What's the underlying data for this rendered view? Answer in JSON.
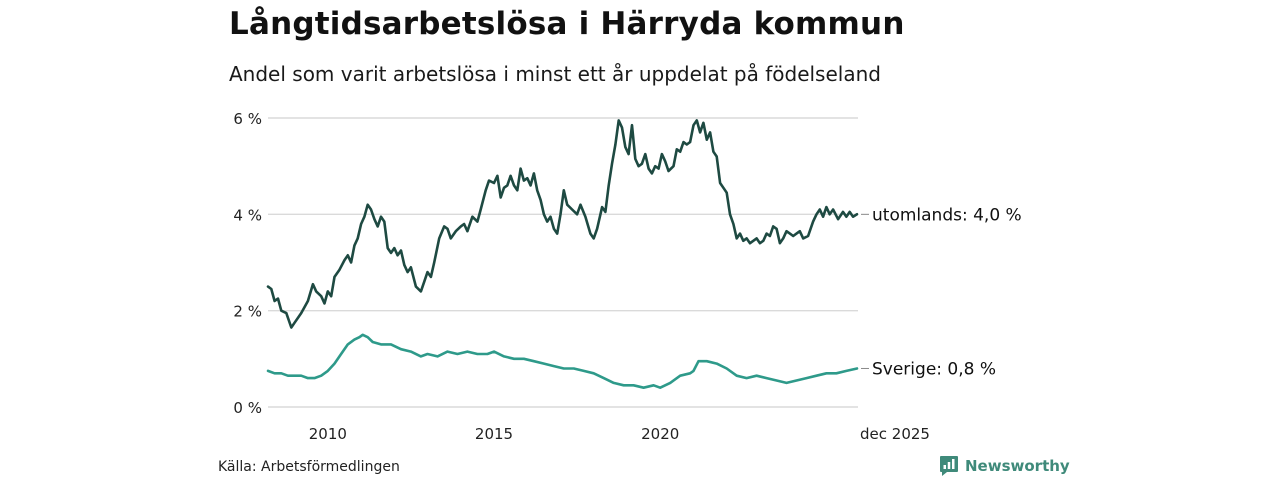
{
  "header": {
    "title": "Långtidsarbetslösa i Härryda kommun",
    "subtitle": "Andel som varit arbetslösa i minst ett år uppdelat på födelseland"
  },
  "footer": {
    "source": "Källa: Arbetsförmedlingen",
    "brand": "Newsworthy"
  },
  "chart_data": {
    "type": "line",
    "title": "Långtidsarbetslösa i Härryda kommun",
    "subtitle": "Andel som varit arbetslösa i minst ett år uppdelat på födelseland",
    "xlabel": "",
    "ylabel": "",
    "xlim": [
      2008.2,
      2025.95
    ],
    "ylim": [
      0,
      6
    ],
    "grid": "horizontal",
    "y_ticks": [
      0,
      2,
      4,
      6
    ],
    "y_tick_labels": [
      "0 %",
      "2 %",
      "4 %",
      "6 %"
    ],
    "x_ticks": [
      2010,
      2015,
      2020,
      2025.92
    ],
    "x_tick_labels": [
      "2010",
      "2015",
      "2020",
      "dec 2025"
    ],
    "series": [
      {
        "name": "utomlands",
        "end_label": "utomlands: 4,0 %",
        "color": "#1e4a42",
        "points": [
          [
            2008.2,
            2.5
          ],
          [
            2008.3,
            2.45
          ],
          [
            2008.4,
            2.2
          ],
          [
            2008.5,
            2.25
          ],
          [
            2008.6,
            2.0
          ],
          [
            2008.75,
            1.95
          ],
          [
            2008.9,
            1.65
          ],
          [
            2009.0,
            1.75
          ],
          [
            2009.2,
            1.95
          ],
          [
            2009.4,
            2.2
          ],
          [
            2009.55,
            2.55
          ],
          [
            2009.65,
            2.4
          ],
          [
            2009.8,
            2.3
          ],
          [
            2009.9,
            2.15
          ],
          [
            2010.0,
            2.4
          ],
          [
            2010.1,
            2.3
          ],
          [
            2010.2,
            2.7
          ],
          [
            2010.35,
            2.85
          ],
          [
            2010.5,
            3.05
          ],
          [
            2010.6,
            3.15
          ],
          [
            2010.7,
            3.0
          ],
          [
            2010.8,
            3.35
          ],
          [
            2010.9,
            3.5
          ],
          [
            2011.0,
            3.8
          ],
          [
            2011.1,
            3.95
          ],
          [
            2011.2,
            4.2
          ],
          [
            2011.3,
            4.1
          ],
          [
            2011.4,
            3.9
          ],
          [
            2011.5,
            3.75
          ],
          [
            2011.6,
            3.95
          ],
          [
            2011.7,
            3.85
          ],
          [
            2011.8,
            3.3
          ],
          [
            2011.9,
            3.2
          ],
          [
            2012.0,
            3.3
          ],
          [
            2012.1,
            3.15
          ],
          [
            2012.2,
            3.25
          ],
          [
            2012.3,
            2.95
          ],
          [
            2012.4,
            2.8
          ],
          [
            2012.5,
            2.9
          ],
          [
            2012.65,
            2.5
          ],
          [
            2012.8,
            2.4
          ],
          [
            2012.9,
            2.6
          ],
          [
            2013.0,
            2.8
          ],
          [
            2013.1,
            2.7
          ],
          [
            2013.2,
            3.0
          ],
          [
            2013.35,
            3.5
          ],
          [
            2013.5,
            3.75
          ],
          [
            2013.6,
            3.7
          ],
          [
            2013.7,
            3.5
          ],
          [
            2013.85,
            3.65
          ],
          [
            2014.0,
            3.75
          ],
          [
            2014.1,
            3.8
          ],
          [
            2014.2,
            3.65
          ],
          [
            2014.35,
            3.95
          ],
          [
            2014.5,
            3.85
          ],
          [
            2014.6,
            4.1
          ],
          [
            2014.75,
            4.5
          ],
          [
            2014.85,
            4.7
          ],
          [
            2015.0,
            4.65
          ],
          [
            2015.1,
            4.8
          ],
          [
            2015.2,
            4.35
          ],
          [
            2015.3,
            4.55
          ],
          [
            2015.4,
            4.6
          ],
          [
            2015.5,
            4.8
          ],
          [
            2015.6,
            4.6
          ],
          [
            2015.7,
            4.5
          ],
          [
            2015.8,
            4.95
          ],
          [
            2015.9,
            4.7
          ],
          [
            2016.0,
            4.75
          ],
          [
            2016.1,
            4.6
          ],
          [
            2016.2,
            4.85
          ],
          [
            2016.3,
            4.5
          ],
          [
            2016.4,
            4.3
          ],
          [
            2016.5,
            4.0
          ],
          [
            2016.6,
            3.85
          ],
          [
            2016.7,
            3.95
          ],
          [
            2016.8,
            3.7
          ],
          [
            2016.9,
            3.6
          ],
          [
            2017.0,
            4.0
          ],
          [
            2017.1,
            4.5
          ],
          [
            2017.2,
            4.2
          ],
          [
            2017.35,
            4.1
          ],
          [
            2017.5,
            4.0
          ],
          [
            2017.6,
            4.2
          ],
          [
            2017.75,
            3.95
          ],
          [
            2017.9,
            3.6
          ],
          [
            2018.0,
            3.5
          ],
          [
            2018.1,
            3.7
          ],
          [
            2018.25,
            4.15
          ],
          [
            2018.35,
            4.05
          ],
          [
            2018.45,
            4.6
          ],
          [
            2018.55,
            5.05
          ],
          [
            2018.65,
            5.45
          ],
          [
            2018.75,
            5.95
          ],
          [
            2018.85,
            5.8
          ],
          [
            2018.95,
            5.4
          ],
          [
            2019.05,
            5.25
          ],
          [
            2019.15,
            5.85
          ],
          [
            2019.25,
            5.15
          ],
          [
            2019.35,
            5.0
          ],
          [
            2019.45,
            5.05
          ],
          [
            2019.55,
            5.25
          ],
          [
            2019.65,
            4.95
          ],
          [
            2019.75,
            4.85
          ],
          [
            2019.85,
            5.0
          ],
          [
            2019.95,
            4.95
          ],
          [
            2020.05,
            5.25
          ],
          [
            2020.15,
            5.1
          ],
          [
            2020.25,
            4.9
          ],
          [
            2020.4,
            5.0
          ],
          [
            2020.5,
            5.35
          ],
          [
            2020.6,
            5.3
          ],
          [
            2020.7,
            5.5
          ],
          [
            2020.8,
            5.45
          ],
          [
            2020.9,
            5.5
          ],
          [
            2021.0,
            5.85
          ],
          [
            2021.1,
            5.95
          ],
          [
            2021.2,
            5.7
          ],
          [
            2021.3,
            5.9
          ],
          [
            2021.4,
            5.55
          ],
          [
            2021.5,
            5.7
          ],
          [
            2021.6,
            5.3
          ],
          [
            2021.7,
            5.2
          ],
          [
            2021.8,
            4.65
          ],
          [
            2021.9,
            4.55
          ],
          [
            2022.0,
            4.45
          ],
          [
            2022.1,
            4.0
          ],
          [
            2022.2,
            3.8
          ],
          [
            2022.3,
            3.5
          ],
          [
            2022.4,
            3.6
          ],
          [
            2022.5,
            3.45
          ],
          [
            2022.6,
            3.5
          ],
          [
            2022.7,
            3.4
          ],
          [
            2022.8,
            3.45
          ],
          [
            2022.9,
            3.5
          ],
          [
            2023.0,
            3.4
          ],
          [
            2023.1,
            3.45
          ],
          [
            2023.2,
            3.6
          ],
          [
            2023.3,
            3.55
          ],
          [
            2023.4,
            3.75
          ],
          [
            2023.5,
            3.7
          ],
          [
            2023.6,
            3.4
          ],
          [
            2023.7,
            3.5
          ],
          [
            2023.8,
            3.65
          ],
          [
            2023.9,
            3.6
          ],
          [
            2024.0,
            3.55
          ],
          [
            2024.1,
            3.6
          ],
          [
            2024.2,
            3.65
          ],
          [
            2024.3,
            3.5
          ],
          [
            2024.45,
            3.55
          ],
          [
            2024.6,
            3.85
          ],
          [
            2024.7,
            4.0
          ],
          [
            2024.8,
            4.1
          ],
          [
            2024.9,
            3.95
          ],
          [
            2025.0,
            4.15
          ],
          [
            2025.1,
            4.0
          ],
          [
            2025.2,
            4.1
          ],
          [
            2025.35,
            3.9
          ],
          [
            2025.5,
            4.05
          ],
          [
            2025.6,
            3.95
          ],
          [
            2025.7,
            4.05
          ],
          [
            2025.8,
            3.95
          ],
          [
            2025.92,
            4.0
          ]
        ]
      },
      {
        "name": "Sverige",
        "end_label": "Sverige: 0,8 %",
        "color": "#2e9a8a",
        "points": [
          [
            2008.2,
            0.75
          ],
          [
            2008.4,
            0.7
          ],
          [
            2008.6,
            0.7
          ],
          [
            2008.8,
            0.65
          ],
          [
            2009.0,
            0.65
          ],
          [
            2009.2,
            0.65
          ],
          [
            2009.4,
            0.6
          ],
          [
            2009.6,
            0.6
          ],
          [
            2009.8,
            0.65
          ],
          [
            2010.0,
            0.75
          ],
          [
            2010.2,
            0.9
          ],
          [
            2010.4,
            1.1
          ],
          [
            2010.6,
            1.3
          ],
          [
            2010.8,
            1.4
          ],
          [
            2010.95,
            1.45
          ],
          [
            2011.05,
            1.5
          ],
          [
            2011.2,
            1.45
          ],
          [
            2011.35,
            1.35
          ],
          [
            2011.6,
            1.3
          ],
          [
            2011.9,
            1.3
          ],
          [
            2012.2,
            1.2
          ],
          [
            2012.5,
            1.15
          ],
          [
            2012.8,
            1.05
          ],
          [
            2013.0,
            1.1
          ],
          [
            2013.3,
            1.05
          ],
          [
            2013.6,
            1.15
          ],
          [
            2013.9,
            1.1
          ],
          [
            2014.2,
            1.15
          ],
          [
            2014.5,
            1.1
          ],
          [
            2014.8,
            1.1
          ],
          [
            2015.0,
            1.15
          ],
          [
            2015.3,
            1.05
          ],
          [
            2015.6,
            1.0
          ],
          [
            2015.9,
            1.0
          ],
          [
            2016.2,
            0.95
          ],
          [
            2016.5,
            0.9
          ],
          [
            2016.8,
            0.85
          ],
          [
            2017.1,
            0.8
          ],
          [
            2017.4,
            0.8
          ],
          [
            2017.7,
            0.75
          ],
          [
            2018.0,
            0.7
          ],
          [
            2018.3,
            0.6
          ],
          [
            2018.6,
            0.5
          ],
          [
            2018.9,
            0.45
          ],
          [
            2019.2,
            0.45
          ],
          [
            2019.5,
            0.4
          ],
          [
            2019.8,
            0.45
          ],
          [
            2020.0,
            0.4
          ],
          [
            2020.3,
            0.5
          ],
          [
            2020.6,
            0.65
          ],
          [
            2020.9,
            0.7
          ],
          [
            2021.0,
            0.75
          ],
          [
            2021.15,
            0.95
          ],
          [
            2021.4,
            0.95
          ],
          [
            2021.7,
            0.9
          ],
          [
            2022.0,
            0.8
          ],
          [
            2022.3,
            0.65
          ],
          [
            2022.6,
            0.6
          ],
          [
            2022.9,
            0.65
          ],
          [
            2023.2,
            0.6
          ],
          [
            2023.5,
            0.55
          ],
          [
            2023.8,
            0.5
          ],
          [
            2024.1,
            0.55
          ],
          [
            2024.4,
            0.6
          ],
          [
            2024.7,
            0.65
          ],
          [
            2025.0,
            0.7
          ],
          [
            2025.3,
            0.7
          ],
          [
            2025.6,
            0.75
          ],
          [
            2025.92,
            0.8
          ]
        ]
      }
    ]
  }
}
